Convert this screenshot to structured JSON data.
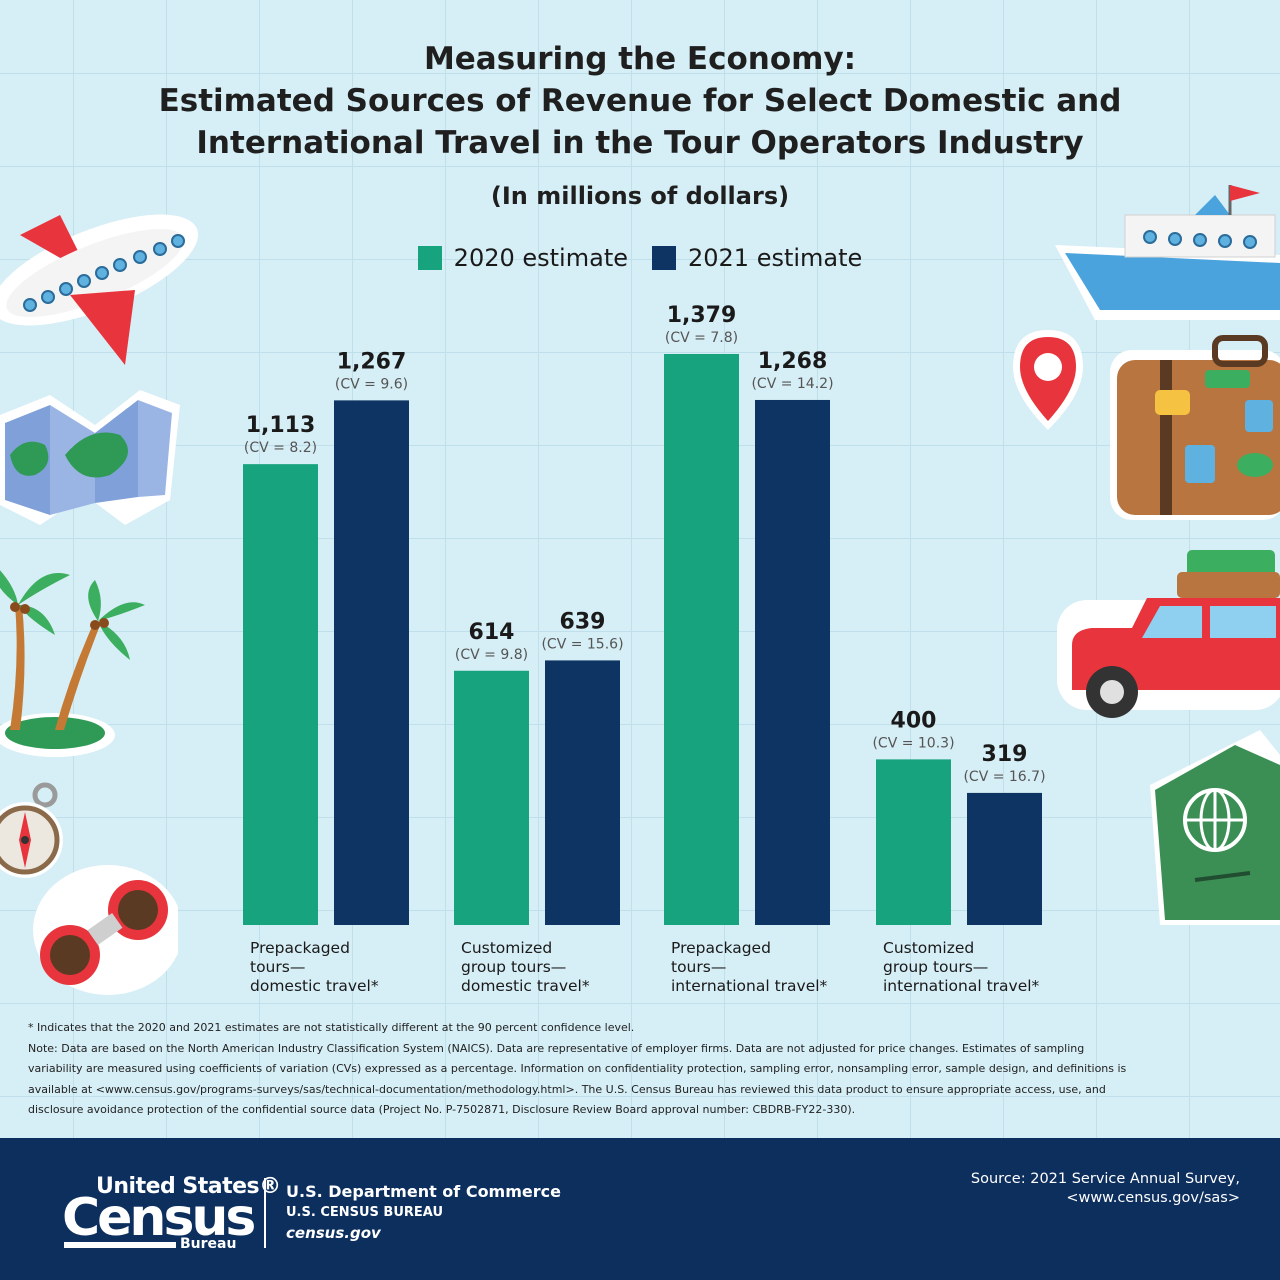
{
  "title": {
    "line1": "Measuring the Economy:",
    "line2": "Estimated Sources of Revenue for Select Domestic and",
    "line3": "International Travel in the Tour Operators Industry"
  },
  "subtitle": "(In millions of dollars)",
  "legend": [
    {
      "label": "2020 estimate",
      "color": "#17a37e"
    },
    {
      "label": "2021 estimate",
      "color": "#0e3463"
    }
  ],
  "chart_data": {
    "type": "bar",
    "title": "Measuring the Economy: Estimated Sources of Revenue for Select Domestic and International Travel in the Tour Operators Industry",
    "subtitle": "(In millions of dollars)",
    "categories": [
      [
        "Prepackaged",
        "tours—",
        "domestic travel*"
      ],
      [
        "Customized",
        "group tours—",
        "domestic travel*"
      ],
      [
        "Prepackaged",
        "tours—",
        "international travel*"
      ],
      [
        "Customized",
        "group tours—",
        "international travel*"
      ]
    ],
    "series": [
      {
        "name": "2020 estimate",
        "color": "#17a37e",
        "values": [
          1113,
          614,
          1379,
          400
        ],
        "value_labels": [
          "1,113",
          "614",
          "1,379",
          "400"
        ],
        "cv_labels": [
          "(CV = 8.2)",
          "(CV = 9.8)",
          "(CV = 7.8)",
          "(CV = 10.3)"
        ]
      },
      {
        "name": "2021 estimate",
        "color": "#0e3463",
        "values": [
          1267,
          639,
          1268,
          319
        ],
        "value_labels": [
          "1,267",
          "639",
          "1,268",
          "319"
        ],
        "cv_labels": [
          "(CV = 9.6)",
          "(CV = 15.6)",
          "(CV = 14.2)",
          "(CV = 16.7)"
        ]
      }
    ],
    "ylim": [
      0,
      1379
    ],
    "grid": false,
    "legend_position": "top-center"
  },
  "footnotes": {
    "asterisk": "* Indicates that the 2020 and 2021 estimates are not statistically different at the 90 percent confidence level.",
    "note": "Note: Data are based on the North American Industry Classification System (NAICS). Data are representative of employer firms. Data are not adjusted for price changes. Estimates of sampling variability are measured using coefficients of variation (CVs) expressed as a percentage. Information on confidentiality protection, sampling error, nonsampling error, sample design, and definitions is available at <www.census.gov/programs-surveys/sas/technical-documentation/methodology.html>. The U.S. Census Bureau has reviewed this data product to ensure appropriate access, use, and disclosure avoidance protection of the confidential source data (Project No. P-7502871, Disclosure Review Board approval number: CBDRB-FY22-330)."
  },
  "footer": {
    "logo_top": "United States®",
    "logo_main": "Census",
    "logo_bureau": "Bureau",
    "dept_line1": "U.S. Department of Commerce",
    "dept_line2": "U.S. CENSUS BUREAU",
    "dept_line3": "census.gov",
    "source_line1": "Source: 2021 Service Annual Survey,",
    "source_line2": "<www.census.gov/sas>"
  },
  "decorations": [
    "airplane-icon",
    "map-icon",
    "palm-island-icon",
    "compass-icon",
    "binoculars-icon",
    "ship-icon",
    "location-pin-icon",
    "suitcase-icon",
    "car-icon",
    "passport-icon"
  ]
}
